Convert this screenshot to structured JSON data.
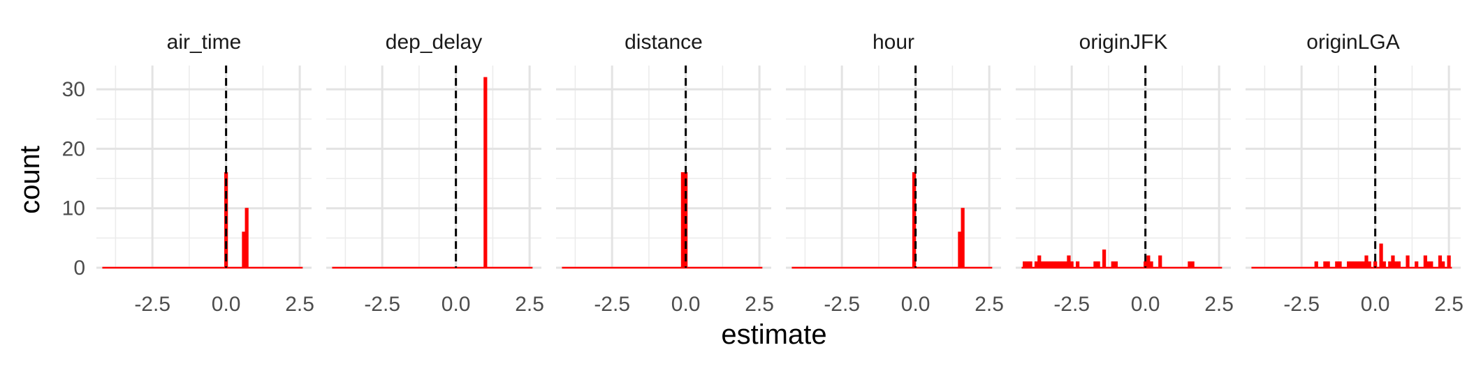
{
  "chart_data": {
    "type": "bar",
    "facet_type": "histogram",
    "xlabel": "estimate",
    "ylabel": "count",
    "xlim": [
      -4.4,
      2.9
    ],
    "ylim": [
      0,
      34
    ],
    "x_ticks": [
      -2.5,
      0.0,
      2.5
    ],
    "x_tick_labels": [
      "-2.5",
      "0.0",
      "2.5"
    ],
    "y_ticks": [
      0,
      10,
      20,
      30
    ],
    "y_tick_labels": [
      "0",
      "10",
      "20",
      "30"
    ],
    "reference_line": {
      "x": 0,
      "style": "dashed",
      "color": "#000000"
    },
    "bar_color": "#ff0000",
    "bin_range": [
      -4.2,
      2.6
    ],
    "grid": true,
    "facets": [
      {
        "label": "air_time",
        "bars": [
          {
            "x": 0.0,
            "count": 16
          },
          {
            "x": 0.6,
            "count": 6
          },
          {
            "x": 0.7,
            "count": 10
          }
        ]
      },
      {
        "label": "dep_delay",
        "bars": [
          {
            "x": 1.0,
            "count": 32
          }
        ]
      },
      {
        "label": "distance",
        "bars": [
          {
            "x": -0.1,
            "count": 16
          },
          {
            "x": 0.0,
            "count": 16
          }
        ]
      },
      {
        "label": "hour",
        "bars": [
          {
            "x": -0.05,
            "count": 16
          },
          {
            "x": 1.5,
            "count": 6
          },
          {
            "x": 1.6,
            "count": 10
          }
        ]
      },
      {
        "label": "originJFK",
        "bars": [
          {
            "x": -4.1,
            "count": 1
          },
          {
            "x": -4.0,
            "count": 1
          },
          {
            "x": -3.9,
            "count": 1
          },
          {
            "x": -3.7,
            "count": 1
          },
          {
            "x": -3.6,
            "count": 2
          },
          {
            "x": -3.5,
            "count": 1
          },
          {
            "x": -3.4,
            "count": 1
          },
          {
            "x": -3.3,
            "count": 1
          },
          {
            "x": -3.2,
            "count": 1
          },
          {
            "x": -3.1,
            "count": 1
          },
          {
            "x": -3.0,
            "count": 1
          },
          {
            "x": -2.9,
            "count": 1
          },
          {
            "x": -2.8,
            "count": 1
          },
          {
            "x": -2.7,
            "count": 1
          },
          {
            "x": -2.6,
            "count": 2
          },
          {
            "x": -2.5,
            "count": 1
          },
          {
            "x": -2.3,
            "count": 1
          },
          {
            "x": -1.7,
            "count": 1
          },
          {
            "x": -1.6,
            "count": 1
          },
          {
            "x": -1.4,
            "count": 3
          },
          {
            "x": -1.1,
            "count": 1
          },
          {
            "x": -1.0,
            "count": 1
          },
          {
            "x": 0.0,
            "count": 1
          },
          {
            "x": 0.1,
            "count": 2
          },
          {
            "x": 0.2,
            "count": 1
          },
          {
            "x": 0.5,
            "count": 2
          },
          {
            "x": 1.5,
            "count": 1
          },
          {
            "x": 1.6,
            "count": 1
          }
        ]
      },
      {
        "label": "originLGA",
        "bars": [
          {
            "x": -2.0,
            "count": 1
          },
          {
            "x": -1.7,
            "count": 1
          },
          {
            "x": -1.6,
            "count": 1
          },
          {
            "x": -1.3,
            "count": 1
          },
          {
            "x": -1.2,
            "count": 1
          },
          {
            "x": -0.9,
            "count": 1
          },
          {
            "x": -0.8,
            "count": 1
          },
          {
            "x": -0.7,
            "count": 1
          },
          {
            "x": -0.6,
            "count": 1
          },
          {
            "x": -0.5,
            "count": 1
          },
          {
            "x": -0.4,
            "count": 1
          },
          {
            "x": -0.3,
            "count": 2
          },
          {
            "x": -0.2,
            "count": 1
          },
          {
            "x": 0.0,
            "count": 1
          },
          {
            "x": 0.2,
            "count": 4
          },
          {
            "x": 0.3,
            "count": 1
          },
          {
            "x": 0.5,
            "count": 1
          },
          {
            "x": 0.6,
            "count": 2
          },
          {
            "x": 0.7,
            "count": 1
          },
          {
            "x": 0.8,
            "count": 1
          },
          {
            "x": 1.1,
            "count": 2
          },
          {
            "x": 1.4,
            "count": 1
          },
          {
            "x": 1.7,
            "count": 2
          },
          {
            "x": 1.8,
            "count": 1
          },
          {
            "x": 1.9,
            "count": 1
          },
          {
            "x": 2.2,
            "count": 2
          },
          {
            "x": 2.3,
            "count": 1
          },
          {
            "x": 2.5,
            "count": 2
          }
        ]
      }
    ]
  }
}
